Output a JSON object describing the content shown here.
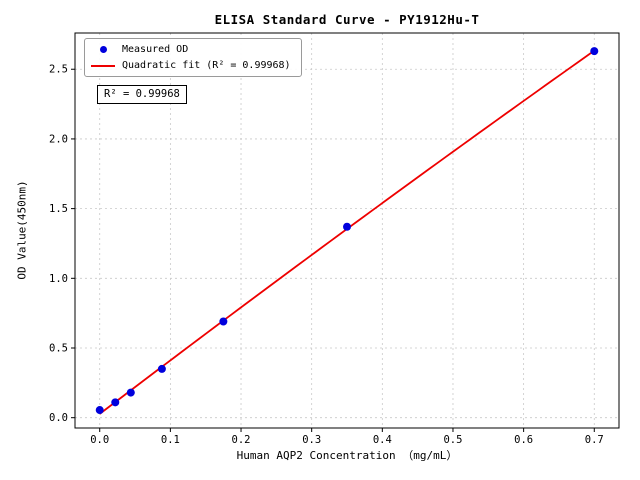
{
  "chart_data": {
    "type": "scatter",
    "title": "ELISA Standard Curve - PY1912Hu-T",
    "xlabel": "Human AQP2 Concentration （mg/mL）",
    "ylabel": "OD Value(450nm)",
    "x": [
      0.0,
      0.022,
      0.044,
      0.088,
      0.175,
      0.35,
      0.7
    ],
    "y": [
      0.055,
      0.11,
      0.18,
      0.35,
      0.69,
      1.37,
      2.63
    ],
    "fit": {
      "type": "quadratic",
      "r_squared": 0.99968
    },
    "legend": {
      "measured": "Measured OD",
      "fit": "Quadratic fit (R² = 0.99968)",
      "position": "upper left"
    },
    "annotation": "R² = 0.99968",
    "xticks": [
      0.0,
      0.1,
      0.2,
      0.3,
      0.4,
      0.5,
      0.6,
      0.7
    ],
    "yticks": [
      0.0,
      0.5,
      1.0,
      1.5,
      2.0,
      2.5
    ],
    "xlim": [
      -0.035,
      0.735
    ],
    "ylim": [
      -0.074,
      2.76
    ],
    "grid": true,
    "colors": {
      "point": "#0000dd",
      "fit_line": "#ee0000",
      "grid": "#c9c9c9",
      "spine": "#000000"
    }
  }
}
